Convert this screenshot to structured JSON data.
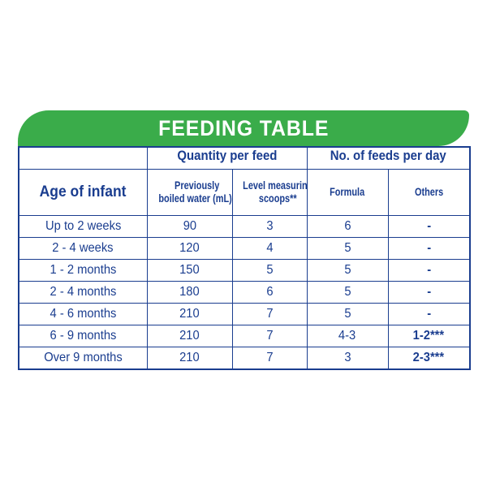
{
  "title": "FEEDING TABLE",
  "headers": {
    "age": "Age of infant",
    "quantity_group": "Quantity per feed",
    "feeds_group": "No. of feeds per day",
    "water_line1": "Previously",
    "water_line2": "boiled water (mL)*",
    "scoops_line1": "Level measuring",
    "scoops_line2": "scoops**",
    "formula": "Formula",
    "others": "Others"
  },
  "rows": [
    {
      "age": "Up to 2 weeks",
      "water": "90",
      "scoops": "3",
      "formula": "6",
      "others": "-"
    },
    {
      "age": "2 - 4 weeks",
      "water": "120",
      "scoops": "4",
      "formula": "5",
      "others": "-"
    },
    {
      "age": "1 - 2 months",
      "water": "150",
      "scoops": "5",
      "formula": "5",
      "others": "-"
    },
    {
      "age": "2 - 4 months",
      "water": "180",
      "scoops": "6",
      "formula": "5",
      "others": "-"
    },
    {
      "age": "4 - 6 months",
      "water": "210",
      "scoops": "7",
      "formula": "5",
      "others": "-"
    },
    {
      "age": "6 - 9 months",
      "water": "210",
      "scoops": "7",
      "formula": "4-3",
      "others": "1-2***"
    },
    {
      "age": "Over 9 months",
      "water": "210",
      "scoops": "7",
      "formula": "3",
      "others": "2-3***"
    }
  ],
  "colors": {
    "banner": "#3aac4a",
    "text": "#1a3d8f",
    "border": "#1a3d8f"
  }
}
